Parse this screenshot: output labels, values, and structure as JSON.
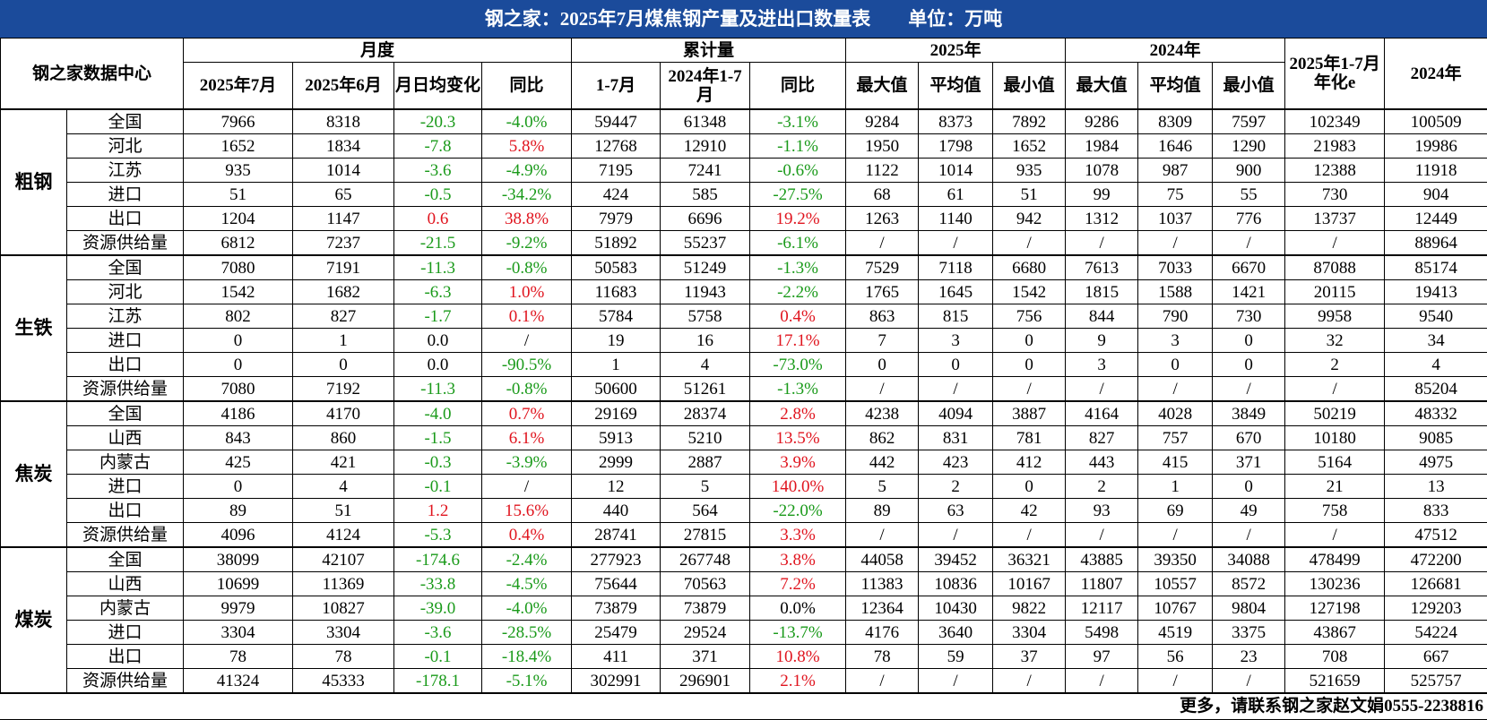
{
  "title": "钢之家：2025年7月煤焦钢产量及进出口数量表　　单位：万吨",
  "header": {
    "corner": "钢之家数据中心",
    "groups": [
      {
        "label": "月度",
        "columns": [
          "2025年7月",
          "2025年6月",
          "月日均变化",
          "同比"
        ]
      },
      {
        "label": "累计量",
        "columns": [
          "1-7月",
          "2024年1-7月",
          "同比"
        ]
      },
      {
        "label": "2025年",
        "columns": [
          "最大值",
          "平均值",
          "最小值"
        ]
      },
      {
        "label": "2024年",
        "columns": [
          "最大值",
          "平均值",
          "最小值"
        ]
      }
    ],
    "annualized": "2025年1-7月年化e",
    "year_2024": "2024年"
  },
  "groups": [
    {
      "name": "粗钢",
      "rows": [
        {
          "label": "全国",
          "cells": [
            "7966",
            "8318",
            "-20.3",
            "-4.0%",
            "59447",
            "61348",
            "-3.1%",
            "9284",
            "8373",
            "7892",
            "9286",
            "8309",
            "7597",
            "102349",
            "100509"
          ]
        },
        {
          "label": "河北",
          "cells": [
            "1652",
            "1834",
            "-7.8",
            "5.8%",
            "12768",
            "12910",
            "-1.1%",
            "1950",
            "1798",
            "1652",
            "1984",
            "1646",
            "1290",
            "21983",
            "19986"
          ]
        },
        {
          "label": "江苏",
          "cells": [
            "935",
            "1014",
            "-3.6",
            "-4.9%",
            "7195",
            "7241",
            "-0.6%",
            "1122",
            "1014",
            "935",
            "1078",
            "987",
            "900",
            "12388",
            "11918"
          ]
        },
        {
          "label": "进口",
          "cells": [
            "51",
            "65",
            "-0.5",
            "-34.2%",
            "424",
            "585",
            "-27.5%",
            "68",
            "61",
            "51",
            "99",
            "75",
            "55",
            "730",
            "904"
          ]
        },
        {
          "label": "出口",
          "cells": [
            "1204",
            "1147",
            "0.6",
            "38.8%",
            "7979",
            "6696",
            "19.2%",
            "1263",
            "1140",
            "942",
            "1312",
            "1037",
            "776",
            "13737",
            "12449"
          ]
        },
        {
          "label": "资源供给量",
          "cells": [
            "6812",
            "7237",
            "-21.5",
            "-9.2%",
            "51892",
            "55237",
            "-6.1%",
            "/",
            "/",
            "/",
            "/",
            "/",
            "/",
            "/",
            "88964"
          ]
        }
      ]
    },
    {
      "name": "生铁",
      "rows": [
        {
          "label": "全国",
          "cells": [
            "7080",
            "7191",
            "-11.3",
            "-0.8%",
            "50583",
            "51249",
            "-1.3%",
            "7529",
            "7118",
            "6680",
            "7613",
            "7033",
            "6670",
            "87088",
            "85174"
          ]
        },
        {
          "label": "河北",
          "cells": [
            "1542",
            "1682",
            "-6.3",
            "1.0%",
            "11683",
            "11943",
            "-2.2%",
            "1765",
            "1645",
            "1542",
            "1815",
            "1588",
            "1421",
            "20115",
            "19413"
          ]
        },
        {
          "label": "江苏",
          "cells": [
            "802",
            "827",
            "-1.7",
            "0.1%",
            "5784",
            "5758",
            "0.4%",
            "863",
            "815",
            "756",
            "844",
            "790",
            "730",
            "9958",
            "9540"
          ]
        },
        {
          "label": "进口",
          "cells": [
            "0",
            "1",
            "0.0",
            "/",
            "19",
            "16",
            "17.1%",
            "7",
            "3",
            "0",
            "9",
            "3",
            "0",
            "32",
            "34"
          ]
        },
        {
          "label": "出口",
          "cells": [
            "0",
            "0",
            "0.0",
            "-90.5%",
            "1",
            "4",
            "-73.0%",
            "0",
            "0",
            "0",
            "3",
            "0",
            "0",
            "2",
            "4"
          ]
        },
        {
          "label": "资源供给量",
          "cells": [
            "7080",
            "7192",
            "-11.3",
            "-0.8%",
            "50600",
            "51261",
            "-1.3%",
            "/",
            "/",
            "/",
            "/",
            "/",
            "/",
            "/",
            "85204"
          ]
        }
      ]
    },
    {
      "name": "焦炭",
      "rows": [
        {
          "label": "全国",
          "cells": [
            "4186",
            "4170",
            "-4.0",
            "0.7%",
            "29169",
            "28374",
            "2.8%",
            "4238",
            "4094",
            "3887",
            "4164",
            "4028",
            "3849",
            "50219",
            "48332"
          ]
        },
        {
          "label": "山西",
          "cells": [
            "843",
            "860",
            "-1.5",
            "6.1%",
            "5913",
            "5210",
            "13.5%",
            "862",
            "831",
            "781",
            "827",
            "757",
            "670",
            "10180",
            "9085"
          ]
        },
        {
          "label": "内蒙古",
          "cells": [
            "425",
            "421",
            "-0.3",
            "-3.9%",
            "2999",
            "2887",
            "3.9%",
            "442",
            "423",
            "412",
            "443",
            "415",
            "371",
            "5164",
            "4975"
          ]
        },
        {
          "label": "进口",
          "cells": [
            "0",
            "4",
            "-0.1",
            "/",
            "12",
            "5",
            "140.0%",
            "5",
            "2",
            "0",
            "2",
            "1",
            "0",
            "21",
            "13"
          ]
        },
        {
          "label": "出口",
          "cells": [
            "89",
            "51",
            "1.2",
            "15.6%",
            "440",
            "564",
            "-22.0%",
            "89",
            "63",
            "42",
            "93",
            "69",
            "49",
            "758",
            "833"
          ]
        },
        {
          "label": "资源供给量",
          "cells": [
            "4096",
            "4124",
            "-5.3",
            "0.4%",
            "28741",
            "27815",
            "3.3%",
            "/",
            "/",
            "/",
            "/",
            "/",
            "/",
            "/",
            "47512"
          ]
        }
      ]
    },
    {
      "name": "煤炭",
      "rows": [
        {
          "label": "全国",
          "cells": [
            "38099",
            "42107",
            "-174.6",
            "-2.4%",
            "277923",
            "267748",
            "3.8%",
            "44058",
            "39452",
            "36321",
            "43885",
            "39350",
            "34088",
            "478499",
            "472200"
          ]
        },
        {
          "label": "山西",
          "cells": [
            "10699",
            "11369",
            "-33.8",
            "-4.5%",
            "75644",
            "70563",
            "7.2%",
            "11383",
            "10836",
            "10167",
            "11807",
            "10557",
            "8572",
            "130236",
            "126681"
          ]
        },
        {
          "label": "内蒙古",
          "cells": [
            "9979",
            "10827",
            "-39.0",
            "-4.0%",
            "73879",
            "73879",
            "0.0%",
            "12364",
            "10430",
            "9822",
            "12117",
            "10767",
            "9804",
            "127198",
            "129203"
          ]
        },
        {
          "label": "进口",
          "cells": [
            "3304",
            "3304",
            "-3.6",
            "-28.5%",
            "25479",
            "29524",
            "-13.7%",
            "4176",
            "3640",
            "3304",
            "5498",
            "4519",
            "3375",
            "43867",
            "54224"
          ]
        },
        {
          "label": "出口",
          "cells": [
            "78",
            "78",
            "-0.1",
            "-18.4%",
            "411",
            "371",
            "10.8%",
            "78",
            "59",
            "37",
            "97",
            "56",
            "23",
            "708",
            "667"
          ]
        },
        {
          "label": "资源供给量",
          "cells": [
            "41324",
            "45333",
            "-178.1",
            "-5.1%",
            "302991",
            "296901",
            "2.1%",
            "/",
            "/",
            "/",
            "/",
            "/",
            "/",
            "521659",
            "525757"
          ]
        }
      ]
    }
  ],
  "footer": "更多，请联系钢之家赵文娟0555-2238816"
}
